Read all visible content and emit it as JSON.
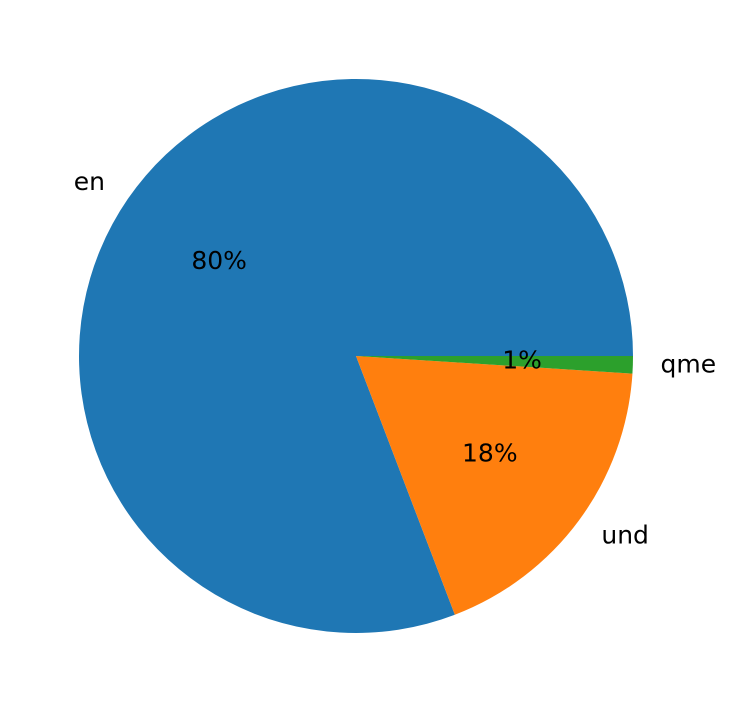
{
  "chart_data": {
    "type": "pie",
    "categories": [
      "en",
      "und",
      "qme"
    ],
    "values": [
      80,
      18,
      1
    ],
    "value_labels": [
      "80%",
      "18%",
      "1%"
    ],
    "colors": [
      "#1f77b4",
      "#ff7f0e",
      "#2ca02c"
    ],
    "start_angle": 0
  }
}
